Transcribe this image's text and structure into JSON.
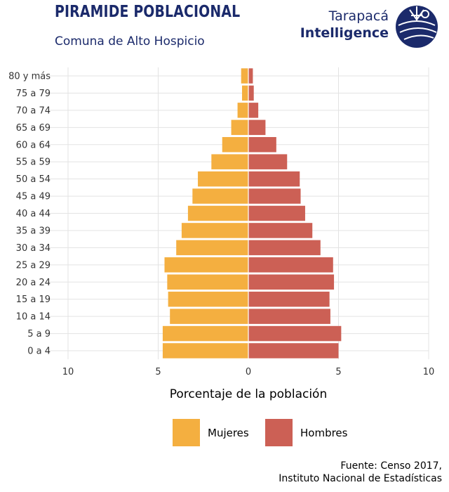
{
  "header": {
    "title": "PIRAMIDE POBLACIONAL",
    "subtitle": "Comuna de Alto Hospicio"
  },
  "brand": {
    "line1": "Tarapacá",
    "line2": "Intelligence",
    "logo_icon": "globe-logo-icon"
  },
  "colors": {
    "mujeres": "#F4AF40",
    "hombres": "#CC6055",
    "text_dark": "#1b2a6b"
  },
  "chart_data": {
    "type": "bar",
    "orientation": "horizontal-population-pyramid",
    "categories": [
      "80 y más",
      "75 a 79",
      "70 a 74",
      "65 a 69",
      "60 a 64",
      "55 a 59",
      "50 a 54",
      "45 a 49",
      "40 a 44",
      "35 a 39",
      "30 a 34",
      "25 a 29",
      "20 a 24",
      "15 a 19",
      "10 a 14",
      "5 a 9",
      "0 a 4"
    ],
    "series": [
      {
        "name": "Mujeres",
        "side": "left",
        "values": [
          0.4,
          0.35,
          0.6,
          0.95,
          1.45,
          2.05,
          2.8,
          3.1,
          3.35,
          3.7,
          4.0,
          4.65,
          4.5,
          4.45,
          4.35,
          4.75,
          4.75
        ]
      },
      {
        "name": "Hombres",
        "side": "right",
        "values": [
          0.25,
          0.3,
          0.55,
          0.95,
          1.55,
          2.15,
          2.85,
          2.9,
          3.15,
          3.55,
          4.0,
          4.7,
          4.75,
          4.5,
          4.55,
          5.15,
          5.0
        ]
      }
    ],
    "xlabel": "Porcentaje de la población",
    "ylabel": "",
    "xlim": [
      -10,
      10
    ],
    "xticks": [
      -10,
      -5,
      0,
      5,
      10
    ],
    "xtick_labels": [
      "10",
      "5",
      "0",
      "5",
      "10"
    ],
    "grid": true,
    "legend_position": "bottom"
  },
  "legend": {
    "mujeres_label": "Mujeres",
    "hombres_label": "Hombres"
  },
  "source": {
    "line1": "Fuente: Censo 2017,",
    "line2": "Instituto Nacional de Estadísticas"
  }
}
